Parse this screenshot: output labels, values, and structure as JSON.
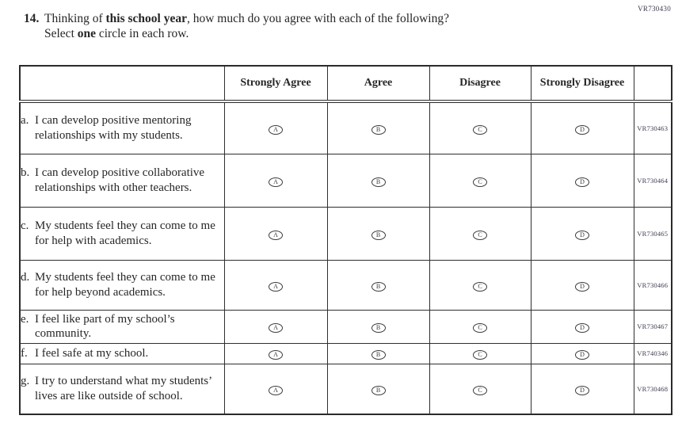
{
  "page_code": "VR730430",
  "question": {
    "number": "14.",
    "line1_pre": "Thinking of ",
    "line1_bold": "this school year",
    "line1_post": ", how much do you agree with each of the following?",
    "line2_pre": "Select ",
    "line2_bold": "one",
    "line2_post": " circle in each row."
  },
  "table": {
    "columns": [
      "",
      "Strongly Agree",
      "Agree",
      "Disagree",
      "Strongly Disagree",
      ""
    ],
    "options": [
      "A",
      "B",
      "C",
      "D"
    ],
    "rows": [
      {
        "label": "a.",
        "statement": "I can develop positive mentoring relationships with my students.",
        "code": "VR730463"
      },
      {
        "label": "b.",
        "statement": "I can develop positive collaborative relationships with other teachers.",
        "code": "VR730464"
      },
      {
        "label": "c.",
        "statement": "My students feel they can come to me for help with academics.",
        "code": "VR730465"
      },
      {
        "label": "d.",
        "statement": "My students feel they can come to me for help beyond academics.",
        "code": "VR730466"
      },
      {
        "label": "e.",
        "statement": "I feel like part of my school’s community.",
        "code": "VR730467"
      },
      {
        "label": "f.",
        "statement": "I feel safe at my school.",
        "code": "VR740346"
      },
      {
        "label": "g.",
        "statement": "I try to understand what my students’ lives are like outside of school.",
        "code": "VR730468"
      }
    ]
  },
  "colors": {
    "text": "#262626",
    "border": "#2e2e2e",
    "code_text": "#3a3a4e",
    "background": "#ffffff"
  }
}
